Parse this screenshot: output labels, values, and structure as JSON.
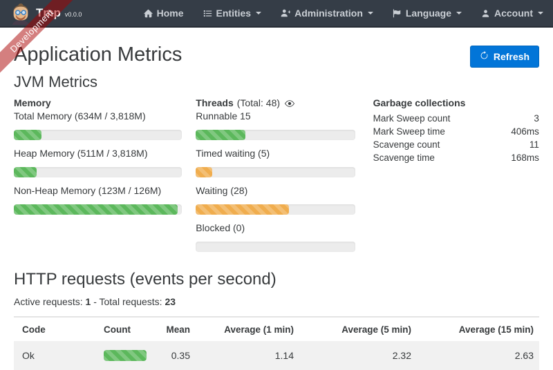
{
  "ribbon": {
    "label": "Development"
  },
  "navbar": {
    "brand": "Tmp",
    "version": "v0.0.0",
    "items": [
      {
        "label": "Home",
        "icon": "home-icon"
      },
      {
        "label": "Entities",
        "icon": "entities-icon"
      },
      {
        "label": "Administration",
        "icon": "administration-icon"
      },
      {
        "label": "Language",
        "icon": "language-icon"
      },
      {
        "label": "Account",
        "icon": "account-icon"
      }
    ]
  },
  "page": {
    "title": "Application Metrics",
    "refresh_label": "Refresh"
  },
  "jvm": {
    "title": "JVM Metrics",
    "memory": {
      "heading": "Memory",
      "bars": [
        {
          "label": "Total Memory (634M / 3,818M)",
          "percent": 16.6,
          "color": "#5cb85c"
        },
        {
          "label": "Heap Memory (511M / 3,818M)",
          "percent": 13.4,
          "color": "#5cb85c"
        },
        {
          "label": "Non-Heap Memory (123M / 126M)",
          "percent": 97.6,
          "color": "#5cb85c"
        }
      ]
    },
    "threads": {
      "heading": "Threads",
      "total": "(Total: 48)",
      "bars": [
        {
          "label": "Runnable 15",
          "percent": 31.3,
          "color": "#5cb85c"
        },
        {
          "label": "Timed waiting (5)",
          "percent": 10.4,
          "color": "#f0ad4e"
        },
        {
          "label": "Waiting (28)",
          "percent": 58.3,
          "color": "#f0ad4e"
        },
        {
          "label": "Blocked (0)",
          "percent": 0,
          "color": "#f0ad4e"
        }
      ]
    },
    "gc": {
      "heading": "Garbage collections",
      "rows": [
        {
          "label": "Mark Sweep count",
          "value": "3"
        },
        {
          "label": "Mark Sweep time",
          "value": "406ms"
        },
        {
          "label": "Scavenge count",
          "value": "11"
        },
        {
          "label": "Scavenge time",
          "value": "168ms"
        }
      ]
    }
  },
  "http": {
    "title": "HTTP requests (events per second)",
    "active_label": "Active requests:",
    "active_value": "1",
    "separator": "-",
    "total_label": "Total requests:",
    "total_value": "23",
    "table": {
      "headers": [
        "Code",
        "Count",
        "Mean",
        "Average (1 min)",
        "Average (5 min)",
        "Average (15 min)"
      ],
      "rows": [
        {
          "code": "Ok",
          "count_bar": {
            "percent": 100,
            "color": "#5cb85c"
          },
          "mean": "0.35",
          "avg1": "1.14",
          "avg5": "2.32",
          "avg15": "2.63"
        }
      ]
    }
  },
  "colors": {
    "primary": "#0275d8",
    "success": "#5cb85c",
    "warning": "#f0ad4e",
    "navbar": "#353d47",
    "ribbon_red": "#aa0000"
  }
}
